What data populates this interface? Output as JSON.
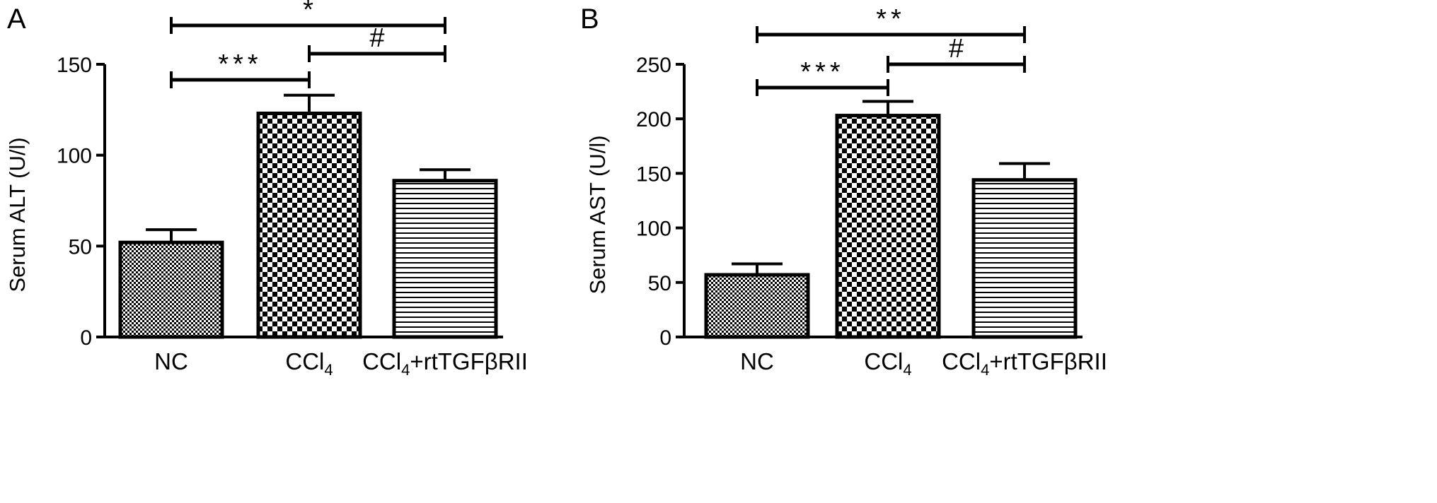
{
  "chart_data": [
    {
      "type": "bar",
      "panel": "A",
      "title": "",
      "xlabel": "",
      "ylabel": "Serum ALT (U/l)",
      "ylim": [
        0,
        150
      ],
      "yticks": [
        "0",
        "50",
        "100",
        "150"
      ],
      "categories": [
        {
          "base": "NC",
          "sub": "",
          "rest": ""
        },
        {
          "base": "CCl",
          "sub": "4",
          "rest": ""
        },
        {
          "base": "CCl",
          "sub": "4",
          "rest": "+rtTGFβRII"
        }
      ],
      "values": [
        52,
        123,
        86
      ],
      "errors": [
        7,
        10,
        6
      ],
      "fills": [
        "fine-check",
        "coarse-check",
        "horizontal-lines"
      ],
      "comparisons": [
        {
          "from": 0,
          "to": 2,
          "label": "*"
        },
        {
          "from": 1,
          "to": 2,
          "label": "#"
        },
        {
          "from": 0,
          "to": 1,
          "label": "***"
        }
      ]
    },
    {
      "type": "bar",
      "panel": "B",
      "title": "",
      "xlabel": "",
      "ylabel": "Serum AST (U/l)",
      "ylim": [
        0,
        250
      ],
      "yticks": [
        "0",
        "50",
        "100",
        "150",
        "200",
        "250"
      ],
      "categories": [
        {
          "base": "NC",
          "sub": "",
          "rest": ""
        },
        {
          "base": "CCl",
          "sub": "4",
          "rest": ""
        },
        {
          "base": "CCl",
          "sub": "4",
          "rest": "+rtTGFβRII"
        }
      ],
      "values": [
        57,
        203,
        144
      ],
      "errors": [
        10,
        13,
        15
      ],
      "fills": [
        "fine-check",
        "coarse-check",
        "horizontal-lines"
      ],
      "comparisons": [
        {
          "from": 0,
          "to": 2,
          "label": "**"
        },
        {
          "from": 1,
          "to": 2,
          "label": "#"
        },
        {
          "from": 0,
          "to": 1,
          "label": "***"
        }
      ]
    }
  ]
}
